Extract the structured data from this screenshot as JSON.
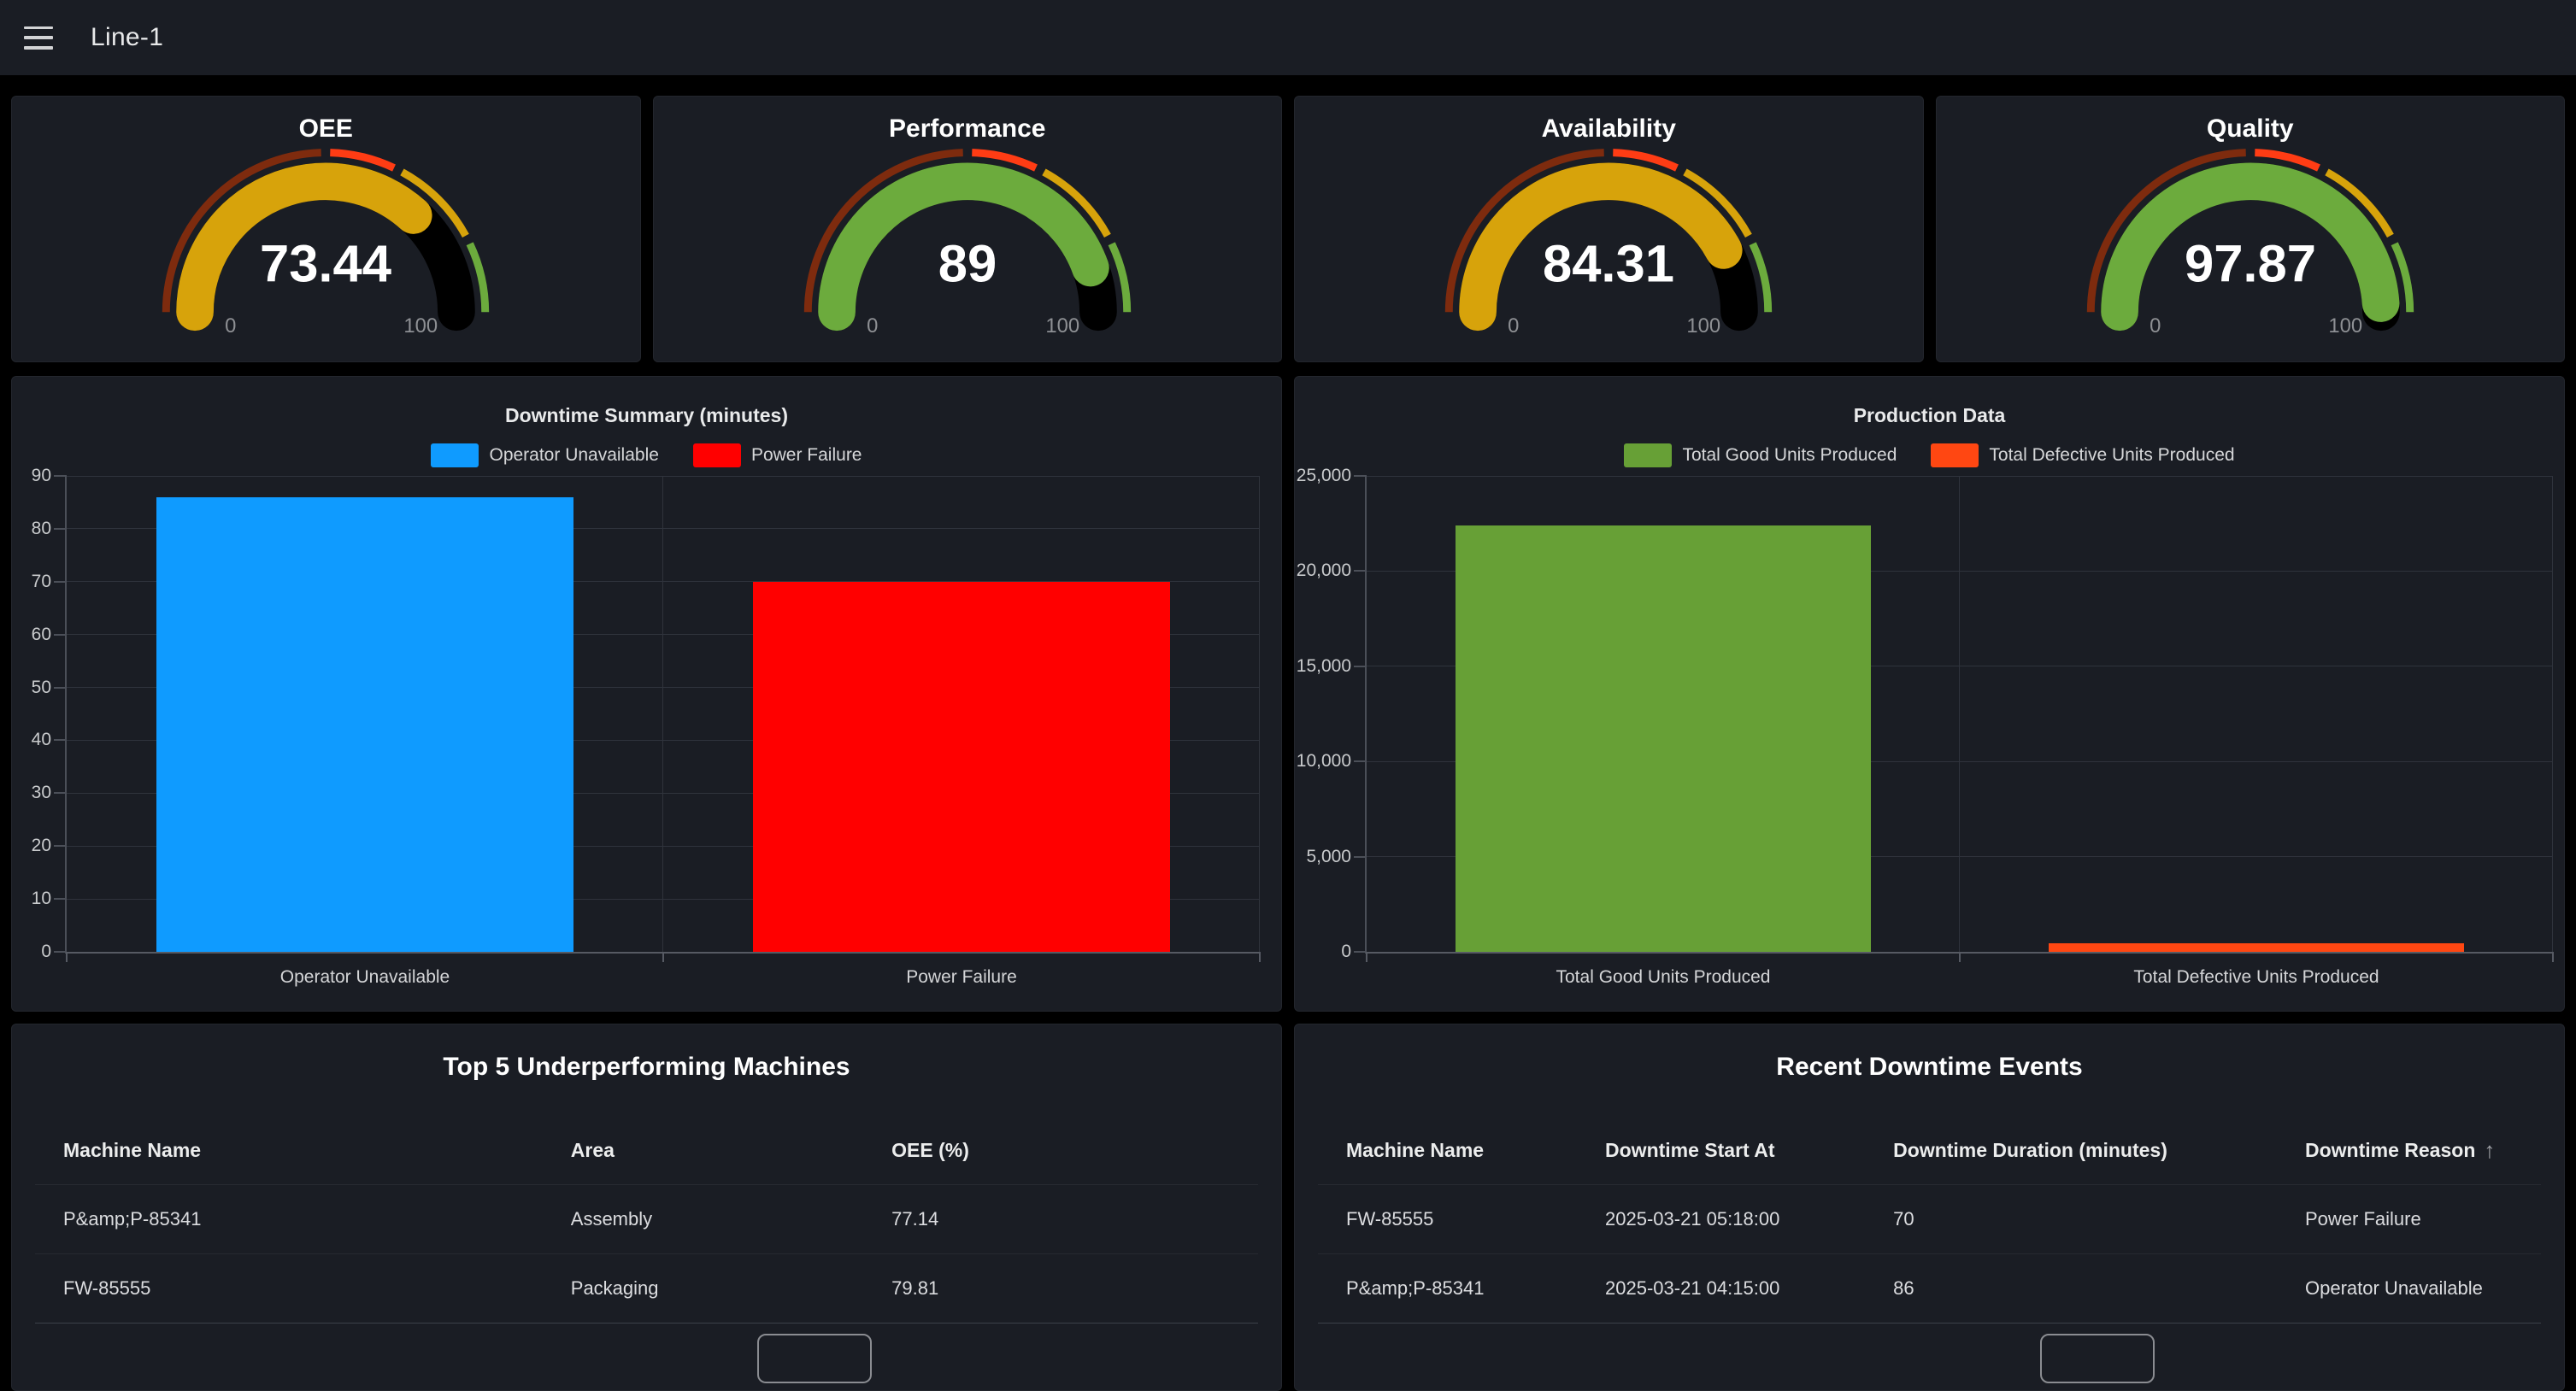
{
  "topbar": {
    "title": "Line-1"
  },
  "gauges": [
    {
      "title": "OEE",
      "value": 73.44,
      "display": "73.44",
      "min_label": "0",
      "max_label": "100"
    },
    {
      "title": "Performance",
      "value": 89,
      "display": "89",
      "min_label": "0",
      "max_label": "100"
    },
    {
      "title": "Availability",
      "value": 84.31,
      "display": "84.31",
      "min_label": "0",
      "max_label": "100"
    },
    {
      "title": "Quality",
      "value": 97.87,
      "display": "97.87",
      "min_label": "0",
      "max_label": "100"
    }
  ],
  "gauge_thresholds": {
    "track_color": "#000000",
    "steps": [
      {
        "from": 0,
        "color": "#7e2b0e"
      },
      {
        "from": 50,
        "color": "#ff3c14"
      },
      {
        "from": 65,
        "color": "#d7a30b"
      },
      {
        "from": 85,
        "color": "#6cab3d"
      }
    ]
  },
  "chart_data": [
    {
      "type": "bar",
      "title": "Downtime Summary (minutes)",
      "categories": [
        "Operator Unavailable",
        "Power Failure"
      ],
      "values": [
        86,
        70
      ],
      "colors": [
        "#0f9bff",
        "#ff0000"
      ],
      "legend": [
        {
          "label": "Operator Unavailable",
          "color": "#0f9bff"
        },
        {
          "label": "Power Failure",
          "color": "#ff0000"
        }
      ],
      "ylim": [
        0,
        90
      ],
      "yticks": [
        0,
        10,
        20,
        30,
        40,
        50,
        60,
        70,
        80,
        90
      ],
      "grid": true,
      "legend_position": "top"
    },
    {
      "type": "bar",
      "title": "Production Data",
      "categories": [
        "Total Good Units Produced",
        "Total Defective Units Produced"
      ],
      "values": [
        22400,
        450
      ],
      "colors": [
        "#67a036",
        "#ff4712"
      ],
      "legend": [
        {
          "label": "Total Good Units Produced",
          "color": "#67a036"
        },
        {
          "label": "Total Defective Units Produced",
          "color": "#ff4712"
        }
      ],
      "ylim": [
        0,
        25000
      ],
      "yticks": [
        0,
        5000,
        10000,
        15000,
        20000,
        25000
      ],
      "grid": true,
      "legend_position": "top"
    }
  ],
  "tables": [
    {
      "title": "Top 5 Underperforming Machines",
      "columns": [
        {
          "label": "Machine Name"
        },
        {
          "label": "Area"
        },
        {
          "label": "OEE (%)"
        }
      ],
      "rows": [
        [
          "P&amp;P-85341",
          "Assembly",
          "77.14"
        ],
        [
          "FW-85555",
          "Packaging",
          "79.81"
        ]
      ]
    },
    {
      "title": "Recent Downtime Events",
      "columns": [
        {
          "label": "Machine Name"
        },
        {
          "label": "Downtime Start At"
        },
        {
          "label": "Downtime Duration (minutes)"
        },
        {
          "label": "Downtime Reason",
          "sort_icon": "↑"
        }
      ],
      "rows": [
        [
          "FW-85555",
          "2025-03-21 05:18:00",
          "70",
          "Power Failure"
        ],
        [
          "P&amp;P-85341",
          "2025-03-21 04:15:00",
          "86",
          "Operator Unavailable"
        ]
      ]
    }
  ]
}
